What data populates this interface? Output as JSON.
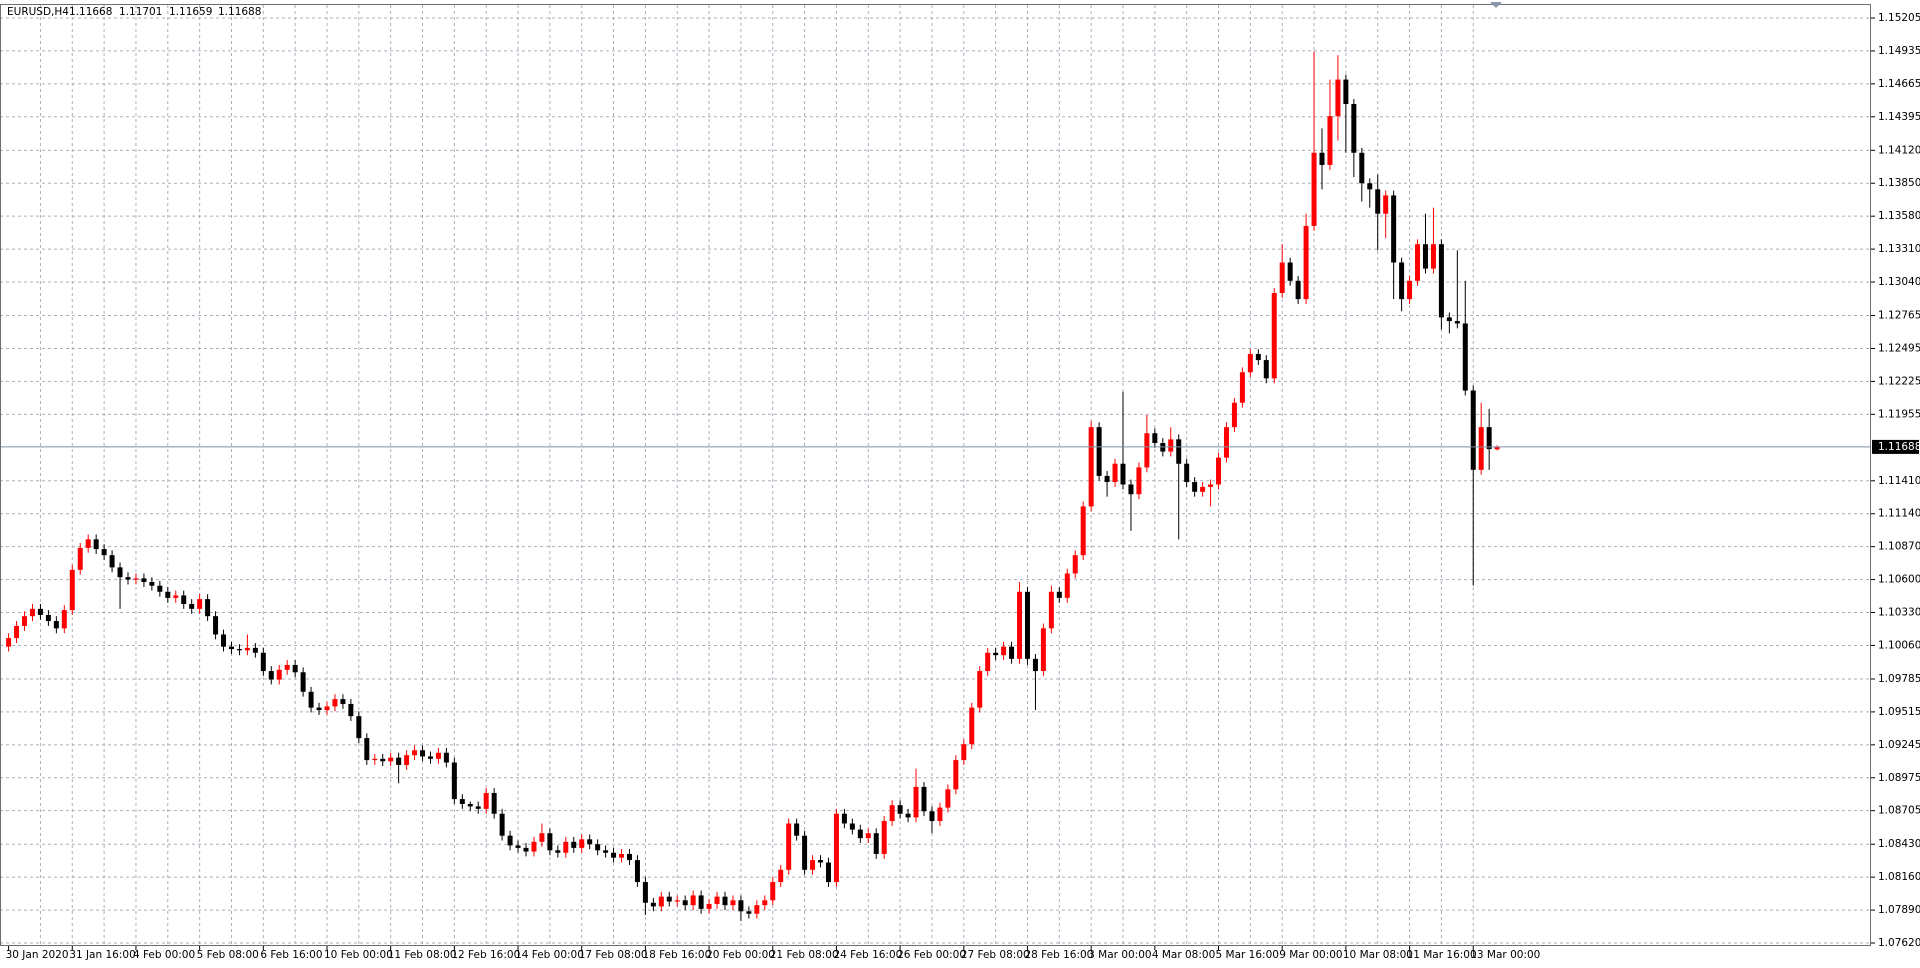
{
  "chart_data": {
    "type": "candlestick",
    "title": "EURUSD,H4",
    "up_color": "#ff0000",
    "down_color": "#000000",
    "grid": true,
    "categories": [
      "30 Jan 2020",
      null,
      null,
      null,
      null,
      null,
      null,
      null,
      "31 Jan 16:00",
      null,
      null,
      null,
      null,
      null,
      null,
      null,
      "4 Feb 00:00",
      null,
      null,
      null,
      null,
      null,
      null,
      null,
      "5 Feb 08:00",
      null,
      null,
      null,
      null,
      null,
      null,
      null,
      "6 Feb 16:00",
      null,
      null,
      null,
      null,
      null,
      null,
      null,
      "10 Feb 00:00",
      null,
      null,
      null,
      null,
      null,
      null,
      null,
      "11 Feb 08:00",
      null,
      null,
      null,
      null,
      null,
      null,
      null,
      "12 Feb 16:00",
      null,
      null,
      null,
      null,
      null,
      null,
      null,
      "14 Feb 00:00",
      null,
      null,
      null,
      null,
      null,
      null,
      null,
      "17 Feb 08:00",
      null,
      null,
      null,
      null,
      null,
      null,
      null,
      "18 Feb 16:00",
      null,
      null,
      null,
      null,
      null,
      null,
      null,
      "20 Feb 00:00",
      null,
      null,
      null,
      null,
      null,
      null,
      null,
      "21 Feb 08:00",
      null,
      null,
      null,
      null,
      null,
      null,
      null,
      "24 Feb 16:00",
      null,
      null,
      null,
      null,
      null,
      null,
      null,
      "26 Feb 00:00",
      null,
      null,
      null,
      null,
      null,
      null,
      null,
      "27 Feb 08:00",
      null,
      null,
      null,
      null,
      null,
      null,
      null,
      "28 Feb 16:00",
      null,
      null,
      null,
      null,
      null,
      null,
      null,
      "3 Mar 00:00",
      null,
      null,
      null,
      null,
      null,
      null,
      null,
      "4 Mar 08:00",
      null,
      null,
      null,
      null,
      null,
      null,
      null,
      "5 Mar 16:00",
      null,
      null,
      null,
      null,
      null,
      null,
      null,
      "9 Mar 00:00",
      null,
      null,
      null,
      null,
      null,
      null,
      null,
      "10 Mar 08:00",
      null,
      null,
      null,
      null,
      null,
      null,
      null,
      "11 Mar 16:00",
      null,
      null,
      null,
      null,
      null,
      null,
      null,
      "13 Mar 00:00",
      null,
      null,
      null
    ],
    "open": [
      1.1005,
      1.1012,
      1.1022,
      1.103,
      1.1036,
      1.1031,
      1.1026,
      1.102,
      1.1035,
      1.1068,
      1.1086,
      1.1093,
      1.1085,
      1.108,
      1.107,
      1.1062,
      1.106,
      1.1061,
      1.1058,
      1.1055,
      1.105,
      1.1045,
      1.1047,
      1.104,
      1.1036,
      1.1044,
      1.103,
      1.1015,
      1.1005,
      1.1003,
      1.1002,
      1.1004,
      1.1,
      1.0985,
      1.0978,
      1.0986,
      1.099,
      1.0984,
      1.0968,
      1.0955,
      1.0953,
      1.0956,
      1.0962,
      1.0958,
      1.0948,
      1.093,
      1.0912,
      1.0913,
      1.0911,
      1.0914,
      1.0908,
      1.0916,
      1.092,
      1.0915,
      1.0913,
      1.0918,
      1.091,
      1.088,
      1.0876,
      1.0874,
      1.0872,
      1.0885,
      1.0868,
      1.085,
      1.0842,
      1.084,
      1.0837,
      1.0845,
      1.0852,
      1.0838,
      1.0836,
      1.0845,
      1.084,
      1.0847,
      1.0843,
      1.0838,
      1.0836,
      1.0832,
      1.0835,
      1.083,
      1.0812,
      1.0795,
      1.0792,
      1.08,
      1.0796,
      1.0797,
      1.0793,
      1.0801,
      1.079,
      1.0794,
      1.08,
      1.0793,
      1.0797,
      1.0788,
      1.0786,
      1.0793,
      1.0797,
      1.0812,
      1.0822,
      1.086,
      1.085,
      1.0822,
      1.083,
      1.0828,
      1.0812,
      1.0868,
      1.086,
      1.0855,
      1.0848,
      1.0852,
      1.0835,
      1.0862,
      1.0875,
      1.0868,
      1.0865,
      1.089,
      1.087,
      1.0862,
      1.0873,
      1.0888,
      1.0912,
      1.0925,
      1.0955,
      1.0985,
      1.1,
      1.0998,
      1.1005,
      1.0995,
      1.105,
      1.0995,
      1.0985,
      1.102,
      1.105,
      1.1045,
      1.1065,
      1.108,
      1.112,
      1.1185,
      1.1145,
      1.114,
      1.1155,
      1.1138,
      1.113,
      1.1152,
      1.118,
      1.1172,
      1.1165,
      1.1175,
      1.1155,
      1.114,
      1.1132,
      1.1136,
      1.1138,
      1.116,
      1.1185,
      1.1205,
      1.123,
      1.1245,
      1.124,
      1.1225,
      1.1295,
      1.132,
      1.1305,
      1.129,
      1.135,
      1.141,
      1.14,
      1.144,
      1.147,
      1.145,
      1.141,
      1.1385,
      1.138,
      1.136,
      1.1375,
      1.132,
      1.129,
      1.1305,
      1.1335,
      1.1315,
      1.1335,
      1.1275,
      1.1272,
      1.127,
      1.1215,
      1.115,
      1.1185,
      1.11668
    ],
    "high": [
      1.1016,
      1.1026,
      1.1034,
      1.104,
      1.104,
      1.1035,
      1.103,
      1.1039,
      1.1072,
      1.109,
      1.1097,
      1.1097,
      1.1089,
      1.1084,
      1.1074,
      1.1066,
      1.1065,
      1.1065,
      1.1062,
      1.1059,
      1.1054,
      1.1051,
      1.1051,
      1.1044,
      1.1048,
      1.1048,
      1.1034,
      1.1019,
      1.1009,
      1.1007,
      1.1015,
      1.1008,
      1.1004,
      1.0989,
      1.099,
      1.0994,
      1.0994,
      1.0988,
      1.0972,
      1.0959,
      1.096,
      1.0966,
      1.0966,
      1.0962,
      1.0952,
      1.0934,
      1.0917,
      1.0917,
      1.0918,
      1.0918,
      1.092,
      1.0924,
      1.0924,
      1.0919,
      1.0922,
      1.0922,
      1.0914,
      1.0884,
      1.0878,
      1.0878,
      1.0889,
      1.0889,
      1.0872,
      1.0854,
      1.0846,
      1.0844,
      1.0849,
      1.086,
      1.0856,
      1.0842,
      1.0849,
      1.0849,
      1.0851,
      1.0851,
      1.0847,
      1.0842,
      1.084,
      1.0839,
      1.0839,
      1.0834,
      1.0816,
      1.0799,
      1.0804,
      1.0804,
      1.0801,
      1.0801,
      1.0805,
      1.0805,
      1.0798,
      1.0804,
      1.0804,
      1.0801,
      1.0801,
      1.0792,
      1.0797,
      1.0801,
      1.0816,
      1.0826,
      1.0864,
      1.0864,
      1.0854,
      1.0834,
      1.0834,
      1.0832,
      1.0872,
      1.0872,
      1.0864,
      1.0859,
      1.0856,
      1.0856,
      1.0866,
      1.0879,
      1.0879,
      1.0872,
      1.0905,
      1.0894,
      1.0874,
      1.0877,
      1.0892,
      1.0916,
      1.0929,
      1.0959,
      1.0989,
      1.1004,
      1.1004,
      1.1009,
      1.1009,
      1.1058,
      1.1054,
      1.0999,
      1.1024,
      1.1055,
      1.1054,
      1.1069,
      1.1084,
      1.1124,
      1.119,
      1.1189,
      1.1149,
      1.1159,
      1.1214,
      1.1142,
      1.1156,
      1.1195,
      1.1184,
      1.1176,
      1.1185,
      1.1179,
      1.1159,
      1.1144,
      1.114,
      1.1142,
      1.1164,
      1.1189,
      1.1209,
      1.1234,
      1.1249,
      1.1249,
      1.1244,
      1.1299,
      1.1335,
      1.1324,
      1.1309,
      1.136,
      1.1493,
      1.143,
      1.147,
      1.149,
      1.1474,
      1.1454,
      1.1414,
      1.1389,
      1.1392,
      1.1379,
      1.1379,
      1.1324,
      1.1309,
      1.1339,
      1.136,
      1.1365,
      1.1339,
      1.1279,
      1.133,
      1.1305,
      1.1219,
      1.1205,
      1.12,
      1.11701
    ],
    "low": [
      1.1001,
      1.1008,
      1.1018,
      1.1026,
      1.1027,
      1.1022,
      1.1016,
      1.1016,
      1.1031,
      1.1064,
      1.1082,
      1.1081,
      1.1076,
      1.1066,
      1.1036,
      1.1056,
      1.1056,
      1.1054,
      1.1051,
      1.1046,
      1.1041,
      1.1041,
      1.1036,
      1.1032,
      1.1032,
      1.1026,
      1.1011,
      1.1001,
      1.0999,
      1.0998,
      1.0998,
      1.0996,
      1.0981,
      1.0974,
      1.0974,
      1.0982,
      1.098,
      1.0964,
      1.0951,
      1.0949,
      1.0949,
      1.0952,
      1.0954,
      1.0944,
      1.0926,
      1.0908,
      1.0908,
      1.0907,
      1.0907,
      1.0893,
      1.0904,
      1.0912,
      1.0911,
      1.0909,
      1.0909,
      1.0906,
      1.0876,
      1.0872,
      1.087,
      1.0868,
      1.0868,
      1.0864,
      1.0846,
      1.0838,
      1.0836,
      1.0833,
      1.0833,
      1.0841,
      1.0834,
      1.0832,
      1.0832,
      1.0836,
      1.0836,
      1.0839,
      1.0834,
      1.0832,
      1.0828,
      1.0828,
      1.0826,
      1.0808,
      1.0785,
      1.0788,
      1.0788,
      1.0792,
      1.0792,
      1.0789,
      1.0789,
      1.0786,
      1.0786,
      1.079,
      1.0789,
      1.0789,
      1.078,
      1.0782,
      1.0782,
      1.0789,
      1.0793,
      1.0808,
      1.0818,
      1.0846,
      1.0818,
      1.0818,
      1.0824,
      1.0808,
      1.0808,
      1.0856,
      1.0851,
      1.0844,
      1.0844,
      1.0831,
      1.0831,
      1.0858,
      1.0864,
      1.0861,
      1.0861,
      1.0866,
      1.0852,
      1.0858,
      1.0869,
      1.0884,
      1.0908,
      1.0921,
      1.0951,
      1.0981,
      1.0994,
      1.0994,
      1.0991,
      1.0991,
      1.099,
      1.0953,
      1.0981,
      1.1016,
      1.1041,
      1.1041,
      1.1061,
      1.1076,
      1.1116,
      1.1141,
      1.1128,
      1.1136,
      1.1134,
      1.11,
      1.1126,
      1.1148,
      1.1168,
      1.1161,
      1.1161,
      1.1093,
      1.1136,
      1.1128,
      1.1128,
      1.112,
      1.1134,
      1.1156,
      1.1181,
      1.1201,
      1.1226,
      1.1236,
      1.1221,
      1.1221,
      1.1291,
      1.1301,
      1.1286,
      1.1286,
      1.1346,
      1.138,
      1.1396,
      1.142,
      1.141,
      1.139,
      1.137,
      1.1365,
      1.133,
      1.134,
      1.129,
      1.128,
      1.1286,
      1.1301,
      1.1311,
      1.1311,
      1.1265,
      1.1262,
      1.1266,
      1.1211,
      1.1055,
      1.1146,
      1.115,
      1.11659
    ],
    "close": [
      1.1012,
      1.1022,
      1.103,
      1.1036,
      1.1031,
      1.1026,
      1.102,
      1.1035,
      1.1068,
      1.1086,
      1.1093,
      1.1085,
      1.108,
      1.107,
      1.1062,
      1.106,
      1.1061,
      1.1058,
      1.1055,
      1.105,
      1.1045,
      1.1047,
      1.104,
      1.1036,
      1.1044,
      1.103,
      1.1015,
      1.1005,
      1.1003,
      1.1002,
      1.1004,
      1.1,
      1.0985,
      1.0978,
      1.0986,
      1.099,
      1.0984,
      1.0968,
      1.0955,
      1.0953,
      1.0956,
      1.0962,
      1.0958,
      1.0948,
      1.093,
      1.0912,
      1.0913,
      1.0911,
      1.0914,
      1.0908,
      1.0916,
      1.092,
      1.0915,
      1.0913,
      1.0918,
      1.091,
      1.088,
      1.0876,
      1.0874,
      1.0872,
      1.0885,
      1.0868,
      1.085,
      1.0842,
      1.084,
      1.0837,
      1.0845,
      1.0852,
      1.0838,
      1.0836,
      1.0845,
      1.084,
      1.0847,
      1.0843,
      1.0838,
      1.0836,
      1.0832,
      1.0835,
      1.083,
      1.0812,
      1.0795,
      1.0792,
      1.08,
      1.0796,
      1.0797,
      1.0793,
      1.0801,
      1.079,
      1.0794,
      1.08,
      1.0793,
      1.0797,
      1.0788,
      1.0786,
      1.0793,
      1.0797,
      1.0812,
      1.0822,
      1.086,
      1.085,
      1.0822,
      1.083,
      1.0828,
      1.0812,
      1.0868,
      1.086,
      1.0855,
      1.0848,
      1.0852,
      1.0835,
      1.0862,
      1.0875,
      1.0868,
      1.0865,
      1.089,
      1.087,
      1.0862,
      1.0873,
      1.0888,
      1.0912,
      1.0925,
      1.0955,
      1.0985,
      1.1,
      1.0998,
      1.1005,
      1.0995,
      1.105,
      1.0995,
      1.0985,
      1.102,
      1.105,
      1.1045,
      1.1065,
      1.108,
      1.112,
      1.1185,
      1.1145,
      1.114,
      1.1155,
      1.1138,
      1.113,
      1.1152,
      1.118,
      1.1172,
      1.1165,
      1.1175,
      1.1155,
      1.114,
      1.1132,
      1.1136,
      1.1138,
      1.116,
      1.1185,
      1.1205,
      1.123,
      1.1245,
      1.124,
      1.1225,
      1.1295,
      1.132,
      1.1305,
      1.129,
      1.135,
      1.141,
      1.14,
      1.144,
      1.147,
      1.145,
      1.141,
      1.1385,
      1.138,
      1.136,
      1.1375,
      1.132,
      1.129,
      1.1305,
      1.1335,
      1.1315,
      1.1335,
      1.1275,
      1.1272,
      1.127,
      1.1215,
      1.115,
      1.1185,
      1.1167,
      1.11688
    ],
    "ylim": [
      1.0762,
      1.15205
    ],
    "yticks": [
      1.15205,
      1.14935,
      1.14665,
      1.14395,
      {
        "value": 1.1412,
        "label": "1.14120"
      },
      {
        "value": 1.1385,
        "label": "1.13850"
      },
      {
        "value": 1.1358,
        "label": "1.13580"
      },
      {
        "value": 1.1331,
        "label": "1.13310"
      },
      {
        "value": 1.1304,
        "label": "1.13040"
      },
      1.12765,
      1.12495,
      1.12225,
      1.11955,
      {
        "value": 1.1141,
        "label": "1.11410"
      },
      {
        "value": 1.1114,
        "label": "1.11140"
      },
      {
        "value": 1.1087,
        "label": "1.10870"
      },
      {
        "value": 1.106,
        "label": "1.10600"
      },
      {
        "value": 1.1033,
        "label": "1.10330"
      },
      {
        "value": 1.1006,
        "label": "1.10060"
      },
      1.09785,
      1.09515,
      1.09245,
      1.08975,
      1.08705,
      {
        "value": 1.0843,
        "label": "1.08430"
      },
      {
        "value": 1.0816,
        "label": "1.08160"
      },
      {
        "value": 1.0789,
        "label": "1.07890"
      },
      {
        "value": 1.0762,
        "label": "1.07620"
      }
    ]
  }
}
